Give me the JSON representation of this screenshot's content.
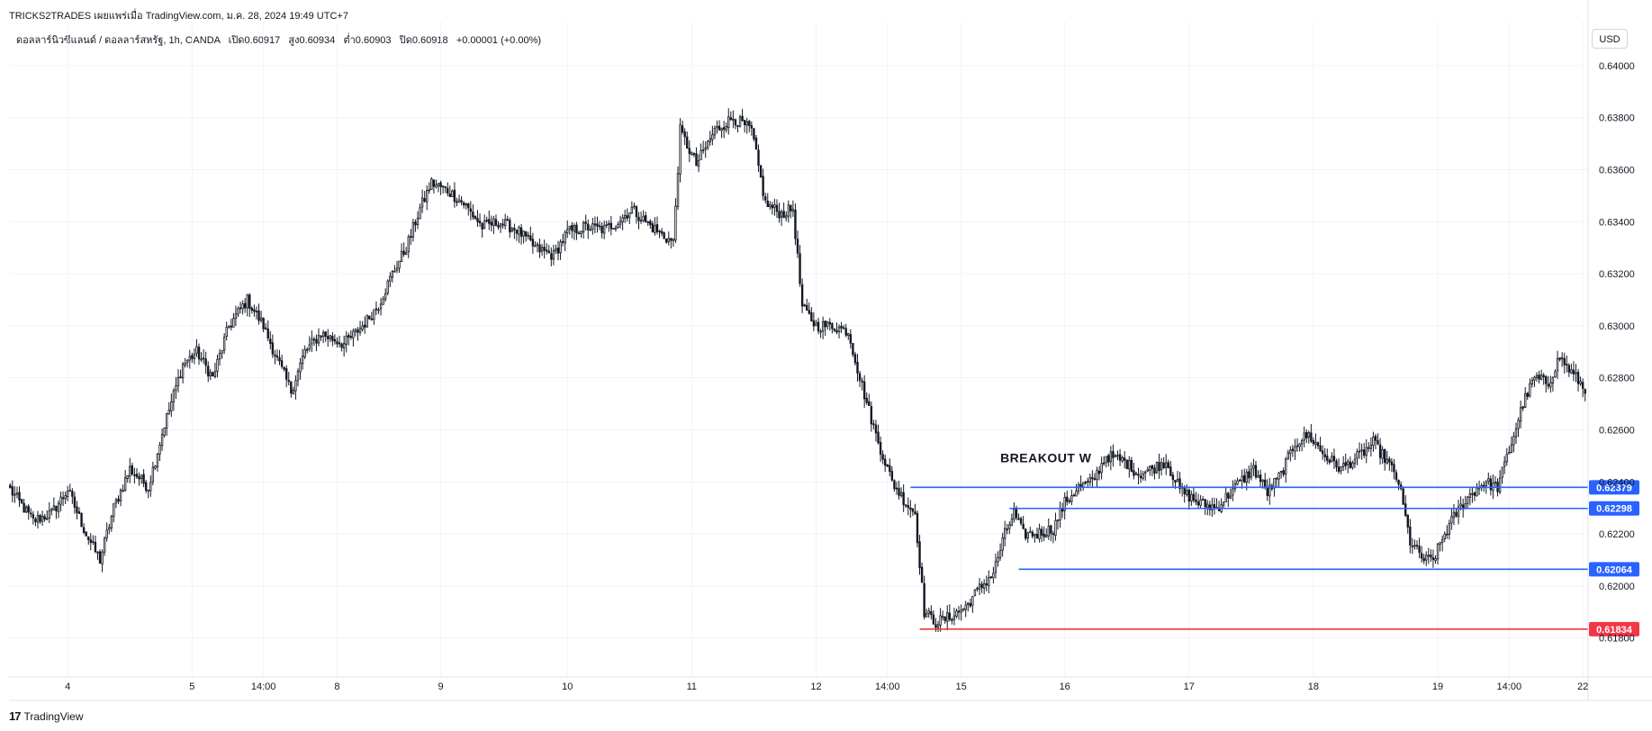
{
  "header": {
    "publisher_line": "TRICKS2TRADES เผยแพร่เมื่อ TradingView.com, ม.ค. 28, 2024 19:49 UTC+7"
  },
  "symbol_bar": {
    "pair": "ดอลลาร์นิวซีแลนด์ / ดอลลาร์สหรัฐ, 1h, OANDA",
    "open_label": "เปิด",
    "open": "0.60917",
    "high_label": "สูง",
    "high": "0.60934",
    "low_label": "ต่ำ",
    "low": "0.60903",
    "close_label": "ปิด",
    "close": "0.60918",
    "change": "+0.00001 (+0.00%)"
  },
  "currency": "USD",
  "footer": {
    "brand": "TradingView",
    "logo_glyph": "17"
  },
  "colors": {
    "candle": "#131722",
    "grid": "#f0f3fa",
    "level_blue": "#2962ff",
    "level_red": "#f23645"
  },
  "chart_data": {
    "type": "candlestick",
    "ylim": [
      0.6165,
      0.641
    ],
    "y_ticks": [
      "0.64000",
      "0.63800",
      "0.63600",
      "0.63400",
      "0.63200",
      "0.63000",
      "0.62800",
      "0.62600",
      "0.62400",
      "0.62200",
      "0.62000",
      "0.61800"
    ],
    "x_ticks": [
      {
        "label": "4",
        "bar": 25
      },
      {
        "label": "5",
        "bar": 79
      },
      {
        "label": "14:00",
        "bar": 110
      },
      {
        "label": "8",
        "bar": 142
      },
      {
        "label": "9",
        "bar": 187
      },
      {
        "label": "10",
        "bar": 242
      },
      {
        "label": "11",
        "bar": 296
      },
      {
        "label": "12",
        "bar": 350
      },
      {
        "label": "14:00",
        "bar": 381
      },
      {
        "label": "15",
        "bar": 413
      },
      {
        "label": "16",
        "bar": 458
      },
      {
        "label": "17",
        "bar": 512
      },
      {
        "label": "18",
        "bar": 566
      },
      {
        "label": "19",
        "bar": 620
      },
      {
        "label": "14:00",
        "bar": 651
      },
      {
        "label": "22",
        "bar": 683
      }
    ],
    "bar_count": 685,
    "anchors": [
      [
        0,
        0.6237
      ],
      [
        10,
        0.6225
      ],
      [
        18,
        0.6228
      ],
      [
        25,
        0.6237
      ],
      [
        33,
        0.622
      ],
      [
        39,
        0.621
      ],
      [
        45,
        0.623
      ],
      [
        52,
        0.6245
      ],
      [
        60,
        0.6238
      ],
      [
        67,
        0.6262
      ],
      [
        75,
        0.6285
      ],
      [
        81,
        0.629
      ],
      [
        88,
        0.628
      ],
      [
        95,
        0.63
      ],
      [
        103,
        0.631
      ],
      [
        110,
        0.63
      ],
      [
        116,
        0.6287
      ],
      [
        122,
        0.6275
      ],
      [
        128,
        0.629
      ],
      [
        135,
        0.6297
      ],
      [
        145,
        0.6293
      ],
      [
        153,
        0.63
      ],
      [
        160,
        0.6308
      ],
      [
        166,
        0.632
      ],
      [
        172,
        0.633
      ],
      [
        178,
        0.6345
      ],
      [
        183,
        0.6355
      ],
      [
        190,
        0.6352
      ],
      [
        197,
        0.6347
      ],
      [
        205,
        0.6338
      ],
      [
        212,
        0.634
      ],
      [
        220,
        0.6337
      ],
      [
        228,
        0.633
      ],
      [
        236,
        0.6327
      ],
      [
        242,
        0.6336
      ],
      [
        250,
        0.6338
      ],
      [
        258,
        0.6337
      ],
      [
        264,
        0.634
      ],
      [
        270,
        0.6345
      ],
      [
        276,
        0.634
      ],
      [
        283,
        0.6335
      ],
      [
        288,
        0.6332
      ],
      [
        291,
        0.6375
      ],
      [
        298,
        0.6362
      ],
      [
        306,
        0.6375
      ],
      [
        314,
        0.638
      ],
      [
        322,
        0.6375
      ],
      [
        328,
        0.6347
      ],
      [
        335,
        0.6343
      ],
      [
        340,
        0.6345
      ],
      [
        344,
        0.6307
      ],
      [
        350,
        0.63
      ],
      [
        357,
        0.63
      ],
      [
        364,
        0.6298
      ],
      [
        369,
        0.628
      ],
      [
        376,
        0.6258
      ],
      [
        383,
        0.624
      ],
      [
        389,
        0.6232
      ],
      [
        393,
        0.6228
      ],
      [
        397,
        0.619
      ],
      [
        402,
        0.6186
      ],
      [
        408,
        0.6188
      ],
      [
        415,
        0.6192
      ],
      [
        420,
        0.6198
      ],
      [
        427,
        0.6205
      ],
      [
        432,
        0.622
      ],
      [
        436,
        0.6228
      ],
      [
        440,
        0.622
      ],
      [
        446,
        0.622
      ],
      [
        453,
        0.6222
      ],
      [
        458,
        0.6232
      ],
      [
        464,
        0.6238
      ],
      [
        470,
        0.624
      ],
      [
        476,
        0.625
      ],
      [
        484,
        0.6248
      ],
      [
        490,
        0.6243
      ],
      [
        496,
        0.6245
      ],
      [
        502,
        0.6248
      ],
      [
        508,
        0.6237
      ],
      [
        516,
        0.6232
      ],
      [
        524,
        0.623
      ],
      [
        532,
        0.6238
      ],
      [
        540,
        0.6245
      ],
      [
        546,
        0.6236
      ],
      [
        552,
        0.6243
      ],
      [
        558,
        0.6255
      ],
      [
        564,
        0.6258
      ],
      [
        571,
        0.625
      ],
      [
        578,
        0.6245
      ],
      [
        586,
        0.625
      ],
      [
        592,
        0.6255
      ],
      [
        598,
        0.6248
      ],
      [
        603,
        0.624
      ],
      [
        608,
        0.6217
      ],
      [
        614,
        0.621
      ],
      [
        618,
        0.621
      ],
      [
        623,
        0.622
      ],
      [
        628,
        0.6228
      ],
      [
        634,
        0.6235
      ],
      [
        640,
        0.624
      ],
      [
        646,
        0.6238
      ],
      [
        652,
        0.6255
      ],
      [
        657,
        0.627
      ],
      [
        662,
        0.628
      ],
      [
        668,
        0.6278
      ],
      [
        673,
        0.6288
      ],
      [
        678,
        0.6282
      ],
      [
        682,
        0.6278
      ],
      [
        684,
        0.6274
      ]
    ],
    "levels": [
      {
        "price": 0.62379,
        "label": "0.62379",
        "color": "blue",
        "start_bar": 391
      },
      {
        "price": 0.62298,
        "label": "0.62298",
        "color": "blue",
        "start_bar": 434
      },
      {
        "price": 0.62064,
        "label": "0.62064",
        "color": "blue",
        "start_bar": 438
      },
      {
        "price": 0.61834,
        "label": "0.61834",
        "color": "red",
        "start_bar": 395
      }
    ],
    "annotations": [
      {
        "text": "BREAKOUT W",
        "bar": 430,
        "price": 0.62475
      }
    ]
  }
}
